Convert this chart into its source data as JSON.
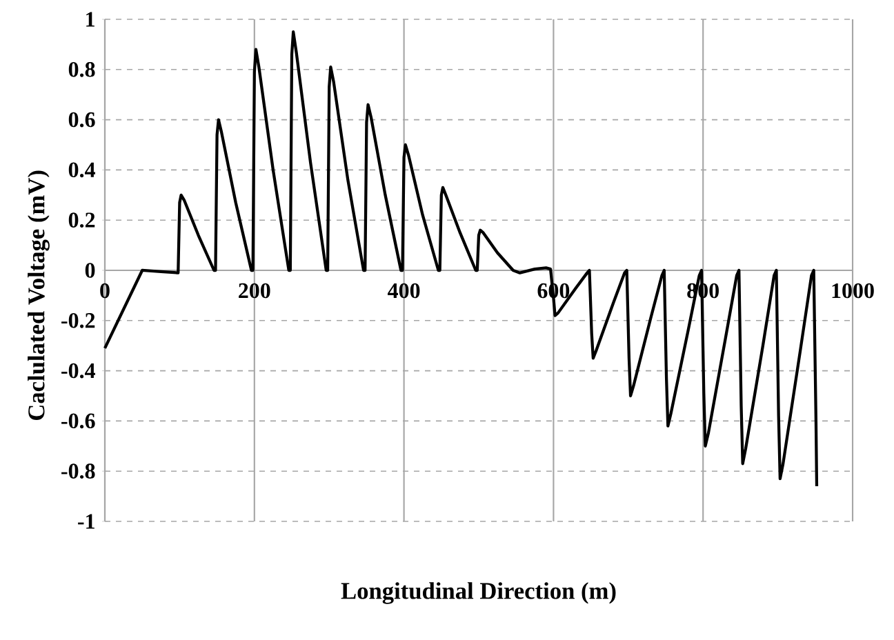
{
  "chart_data": {
    "type": "line",
    "xlabel": "Longitudinal Direction (m)",
    "ylabel": "Caclulated Voltage (mV)",
    "xlim": [
      0,
      1000
    ],
    "ylim": [
      -1,
      1
    ],
    "xticks": [
      0,
      200,
      400,
      600,
      800,
      1000
    ],
    "yticks": [
      -1,
      -0.8,
      -0.6,
      -0.4,
      -0.2,
      0,
      0.2,
      0.4,
      0.6,
      0.8,
      1
    ],
    "grid": true,
    "marker": "none",
    "line_style": "solid",
    "series": [
      {
        "color": "#000000",
        "x": [
          0,
          50,
          75,
          98,
          100,
          102,
          106,
          125,
          146,
          148,
          150,
          152,
          156,
          175,
          196,
          198,
          200,
          202,
          206,
          225,
          246,
          248,
          250,
          252,
          256,
          275,
          296,
          298,
          300,
          302,
          306,
          325,
          346,
          348,
          350,
          352,
          356,
          375,
          396,
          398,
          400,
          402,
          406,
          425,
          446,
          448,
          450,
          452,
          456,
          475,
          496,
          498,
          500,
          502,
          506,
          525,
          546,
          555,
          575,
          590,
          596,
          600,
          602,
          606,
          630,
          645,
          648,
          651,
          653,
          657,
          680,
          695,
          698,
          701,
          703,
          707,
          730,
          745,
          748,
          751,
          753,
          757,
          780,
          795,
          798,
          801,
          803,
          807,
          830,
          845,
          848,
          851,
          853,
          857,
          880,
          895,
          898,
          901,
          903,
          907,
          930,
          945,
          948,
          951,
          952
        ],
        "values": [
          -0.31,
          0,
          -0.005,
          -0.01,
          0.27,
          0.3,
          0.28,
          0.14,
          0,
          0,
          0.54,
          0.6,
          0.55,
          0.27,
          0,
          0,
          0.79,
          0.88,
          0.81,
          0.4,
          0,
          0,
          0.86,
          0.95,
          0.87,
          0.43,
          0,
          0,
          0.73,
          0.81,
          0.75,
          0.36,
          0,
          0,
          0.59,
          0.66,
          0.61,
          0.3,
          0,
          0,
          0.45,
          0.5,
          0.46,
          0.22,
          0,
          0,
          0.3,
          0.33,
          0.3,
          0.15,
          0,
          0,
          0.14,
          0.16,
          0.15,
          0.07,
          0,
          -0.01,
          0.005,
          0.01,
          0.005,
          -0.11,
          -0.18,
          -0.17,
          -0.07,
          -0.01,
          0,
          -0.25,
          -0.35,
          -0.32,
          -0.13,
          -0.01,
          0,
          -0.35,
          -0.5,
          -0.46,
          -0.19,
          -0.02,
          0,
          -0.43,
          -0.62,
          -0.57,
          -0.24,
          -0.02,
          0,
          -0.49,
          -0.7,
          -0.65,
          -0.27,
          -0.02,
          0,
          -0.54,
          -0.77,
          -0.71,
          -0.3,
          -0.02,
          0,
          -0.58,
          -0.83,
          -0.77,
          -0.32,
          -0.02,
          0,
          -0.6,
          -0.86
        ]
      }
    ]
  }
}
